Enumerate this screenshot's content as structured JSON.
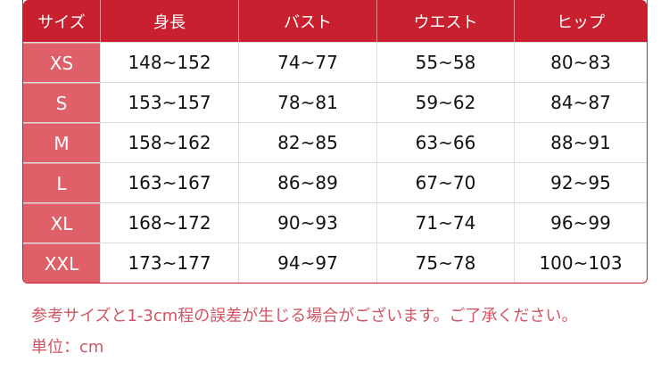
{
  "table": {
    "headers": [
      "サイズ",
      "身長",
      "バスト",
      "ウエスト",
      "ヒップ"
    ],
    "rows": [
      [
        "XS",
        "148~152",
        "74~77",
        "55~58",
        "80~83"
      ],
      [
        "S",
        "153~157",
        "78~81",
        "59~62",
        "84~87"
      ],
      [
        "M",
        "158~162",
        "82~85",
        "63~66",
        "88~91"
      ],
      [
        "L",
        "163~167",
        "86~89",
        "67~70",
        "92~95"
      ],
      [
        "XL",
        "168~172",
        "90~93",
        "71~74",
        "96~99"
      ],
      [
        "XXL",
        "173~177",
        "94~97",
        "75~78",
        "100~103"
      ]
    ]
  },
  "notes": {
    "disclaimer": "参考サイズと1-3cm程の誤差が生じる場合がございます。ご了承ください。",
    "unit": "単位：cm"
  },
  "colors": {
    "header": "#c8202f",
    "size_column": "#e0606a",
    "note_text": "#d25463"
  }
}
